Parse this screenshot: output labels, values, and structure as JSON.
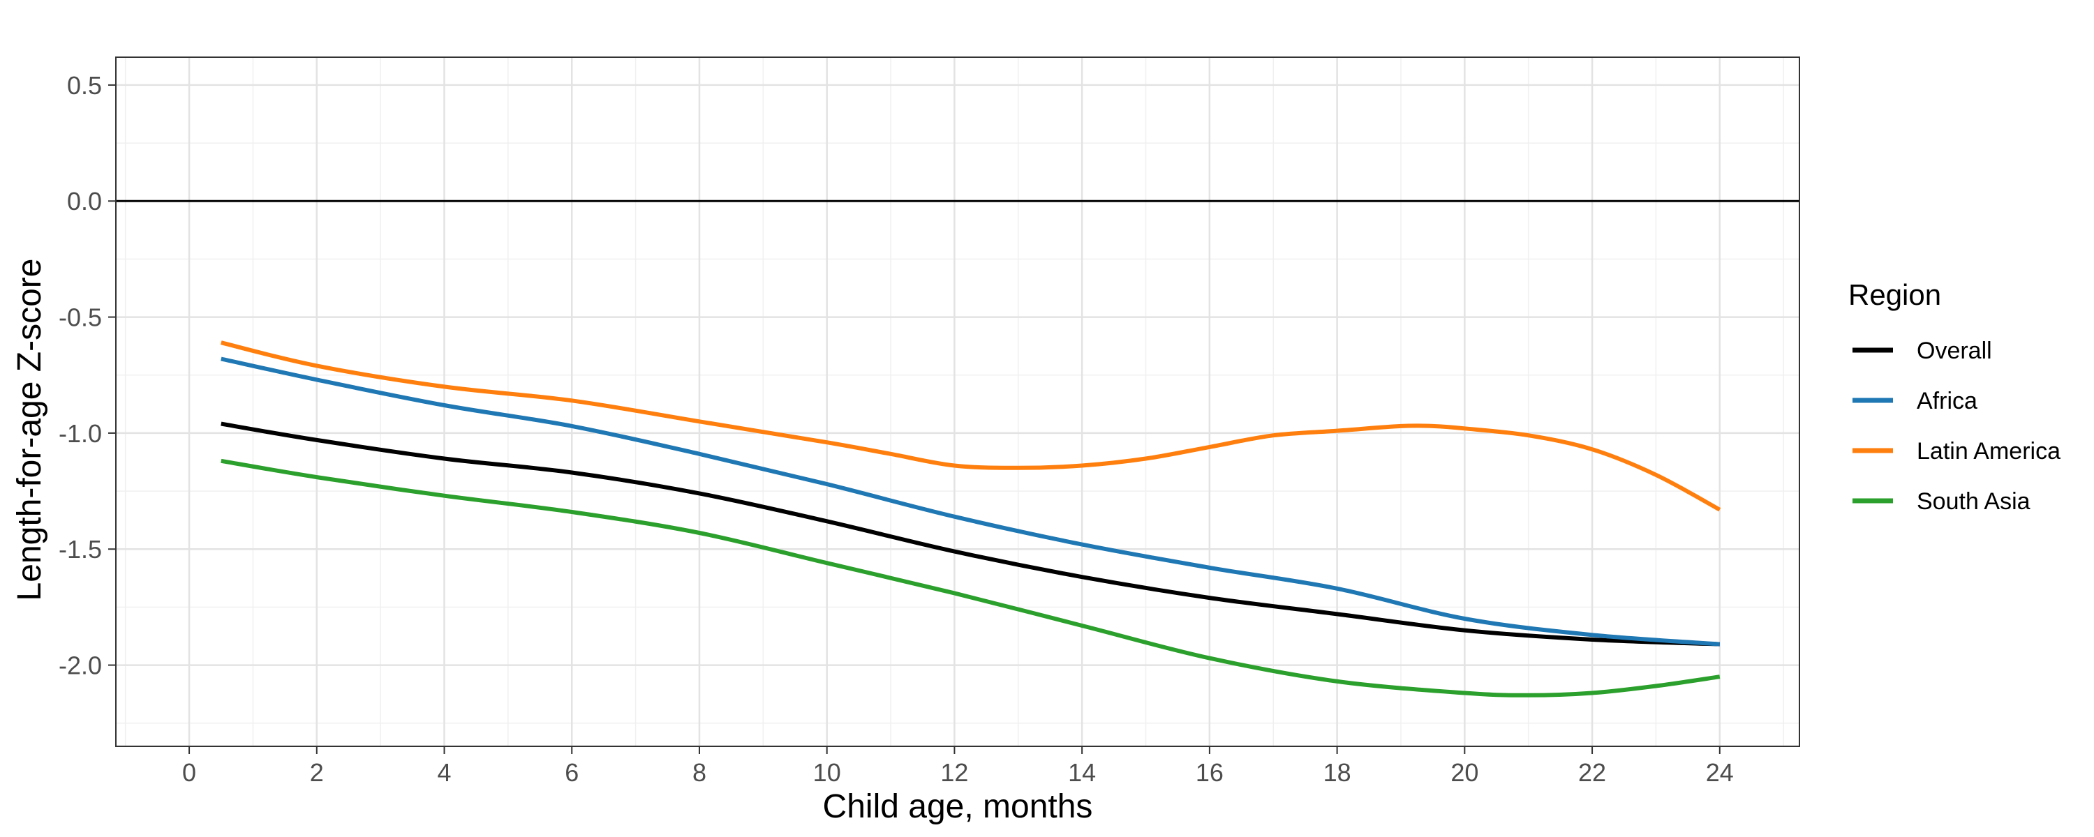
{
  "chart_data": {
    "type": "line",
    "xlabel": "Child age, months",
    "ylabel": "Length-for-age Z-score",
    "xlim": [
      -1.15,
      25.25
    ],
    "ylim": [
      -2.35,
      0.62
    ],
    "x_ticks": [
      0,
      2,
      4,
      6,
      8,
      10,
      12,
      14,
      16,
      18,
      20,
      22,
      24
    ],
    "x_tick_labels": [
      "0",
      "2",
      "4",
      "6",
      "8",
      "10",
      "12",
      "14",
      "16",
      "18",
      "20",
      "22",
      "24"
    ],
    "y_ticks": [
      0.5,
      0.0,
      -0.5,
      -1.0,
      -1.5,
      -2.0
    ],
    "y_tick_labels": [
      "0.5",
      "0.0",
      "-0.5",
      "-1.0",
      "-1.5",
      "-2.0"
    ],
    "reference_line_y": 0,
    "grid": true,
    "legend": {
      "title": "Region",
      "position": "right"
    },
    "series": [
      {
        "name": "Overall",
        "color": "#000000",
        "x": [
          0.5,
          2,
          4,
          6,
          8,
          10,
          12,
          14,
          16,
          18,
          20,
          22,
          24
        ],
        "values": [
          -0.96,
          -1.03,
          -1.11,
          -1.17,
          -1.26,
          -1.38,
          -1.51,
          -1.62,
          -1.71,
          -1.78,
          -1.85,
          -1.89,
          -1.91
        ]
      },
      {
        "name": "Africa",
        "color": "#1f78b4",
        "x": [
          0.5,
          2,
          4,
          6,
          8,
          10,
          12,
          14,
          16,
          18,
          20,
          22,
          24
        ],
        "values": [
          -0.68,
          -0.77,
          -0.88,
          -0.97,
          -1.09,
          -1.22,
          -1.36,
          -1.48,
          -1.58,
          -1.67,
          -1.8,
          -1.87,
          -1.91
        ]
      },
      {
        "name": "Latin America",
        "color": "#ff7f0e",
        "x": [
          0.5,
          2,
          4,
          6,
          8,
          10,
          11,
          12,
          13,
          14,
          15,
          16,
          17,
          18,
          19,
          19.5,
          20,
          21,
          22,
          23,
          24
        ],
        "values": [
          -0.61,
          -0.71,
          -0.8,
          -0.86,
          -0.95,
          -1.04,
          -1.09,
          -1.14,
          -1.15,
          -1.14,
          -1.11,
          -1.06,
          -1.01,
          -0.99,
          -0.97,
          -0.97,
          -0.98,
          -1.01,
          -1.07,
          -1.18,
          -1.33
        ]
      },
      {
        "name": "South Asia",
        "color": "#2ca02c",
        "x": [
          0.5,
          2,
          4,
          6,
          8,
          10,
          12,
          14,
          16,
          18,
          20,
          21,
          22,
          23,
          24
        ],
        "values": [
          -1.12,
          -1.19,
          -1.27,
          -1.34,
          -1.43,
          -1.56,
          -1.69,
          -1.83,
          -1.97,
          -2.07,
          -2.12,
          -2.13,
          -2.12,
          -2.09,
          -2.05
        ]
      }
    ]
  }
}
